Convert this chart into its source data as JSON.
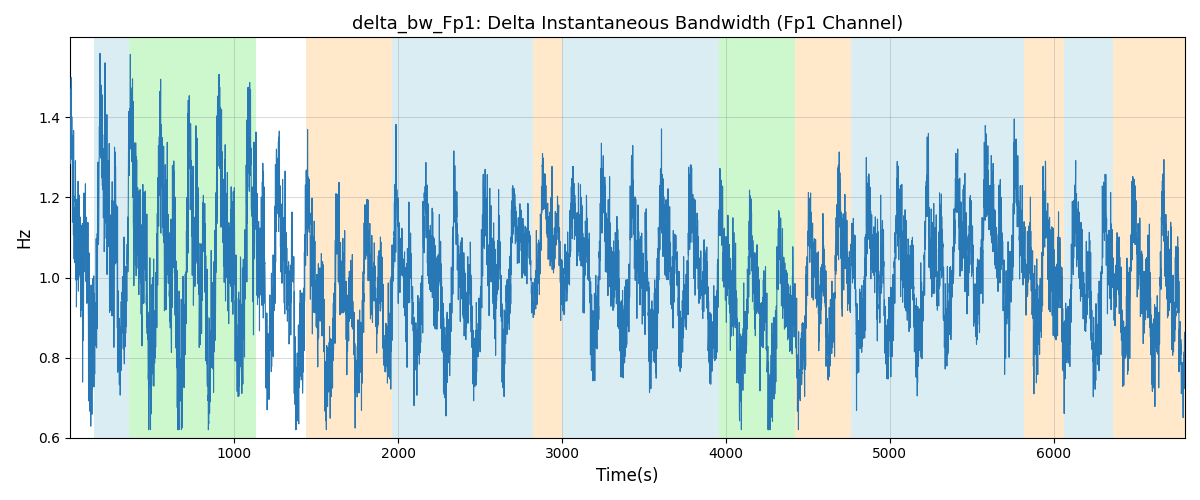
{
  "title": "delta_bw_Fp1: Delta Instantaneous Bandwidth (Fp1 Channel)",
  "xlabel": "Time(s)",
  "ylabel": "Hz",
  "xlim": [
    0,
    6800
  ],
  "ylim": [
    0.6,
    1.6
  ],
  "yticks": [
    0.6,
    0.8,
    1.0,
    1.2,
    1.4
  ],
  "xticks": [
    1000,
    2000,
    3000,
    4000,
    5000,
    6000
  ],
  "line_color": "#2878b5",
  "line_width": 0.8,
  "background_color": "#ffffff",
  "bands": [
    {
      "xmin": 145,
      "xmax": 360,
      "color": "#add8e6",
      "alpha": 0.45
    },
    {
      "xmin": 360,
      "xmax": 1130,
      "color": "#90ee90",
      "alpha": 0.45
    },
    {
      "xmin": 1440,
      "xmax": 1960,
      "color": "#ffd8a0",
      "alpha": 0.55
    },
    {
      "xmin": 1960,
      "xmax": 2820,
      "color": "#add8e6",
      "alpha": 0.45
    },
    {
      "xmin": 2820,
      "xmax": 3000,
      "color": "#ffd8a0",
      "alpha": 0.55
    },
    {
      "xmin": 3000,
      "xmax": 3820,
      "color": "#add8e6",
      "alpha": 0.45
    },
    {
      "xmin": 3820,
      "xmax": 3960,
      "color": "#add8e6",
      "alpha": 0.45
    },
    {
      "xmin": 3960,
      "xmax": 4420,
      "color": "#90ee90",
      "alpha": 0.45
    },
    {
      "xmin": 4420,
      "xmax": 4760,
      "color": "#ffd8a0",
      "alpha": 0.55
    },
    {
      "xmin": 4760,
      "xmax": 5820,
      "color": "#add8e6",
      "alpha": 0.45
    },
    {
      "xmin": 5820,
      "xmax": 6060,
      "color": "#ffd8a0",
      "alpha": 0.55
    },
    {
      "xmin": 6060,
      "xmax": 6360,
      "color": "#add8e6",
      "alpha": 0.45
    },
    {
      "xmin": 6360,
      "xmax": 6800,
      "color": "#ffd8a0",
      "alpha": 0.55
    }
  ],
  "seed": 42,
  "n_points": 6700
}
